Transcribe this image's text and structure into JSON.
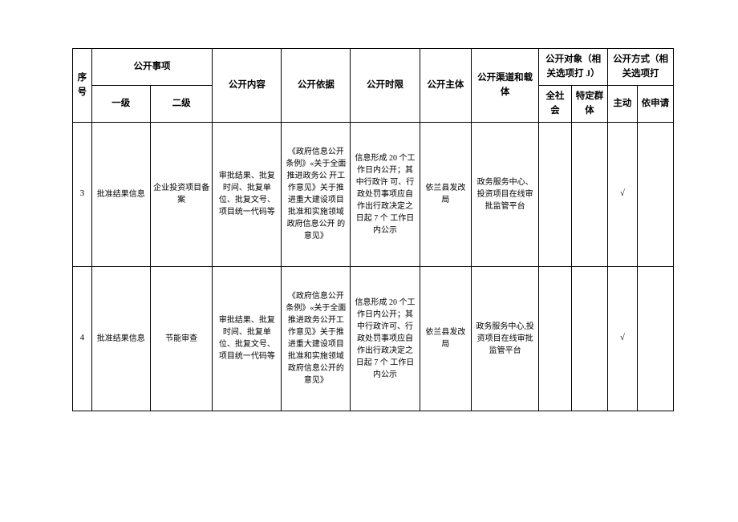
{
  "headers": {
    "seq": "序号",
    "matter": "公开事项",
    "level1": "一级",
    "level2": "二级",
    "content": "公开内容",
    "basis": "公开依据",
    "timeLimit": "公开时限",
    "subject": "公开主体",
    "channel": "公开渠道和载体",
    "target": "公开对象（相关选项打 J）",
    "wholeSociety": "全社会",
    "specificGroup": "特定群体",
    "method": "公开方式（相关选项打",
    "active": "主动",
    "onRequest": "依申请"
  },
  "rows": [
    {
      "seq": "3",
      "level1": "批准结果信息",
      "level2": "企业投资项目备案",
      "content": "审批结果、批复时间、批复单位、批复文号、\n项目统一代码等",
      "basis": "《政府信息公开条例》«关于全面推进政务公\n开工作意见》关于推进重大建设项目批准和实施领域政府信息公开\n的意见》",
      "timeLimit": "信息形成 20 个工作日内公开；其中行政许\n可、行政处罚事项应自作出行政决定之日起 7 个\n工作日内公示",
      "subject": "依兰县发改局",
      "channel": "政务服务中心、投资项目在线审批监管平台",
      "wholeSociety": "",
      "specificGroup": "",
      "active": "√",
      "onRequest": ""
    },
    {
      "seq": "4",
      "level1": "批准结果信息",
      "level2": "节能审查",
      "content": "审批结果、批复时间、批复单\n位、批复文号、项目统一代码等",
      "basis": "《政府信息公开条例》«关于全面推进政务公开工作意见》关于推进重大建设项目批准和实施领域政府信息公开的意见》",
      "timeLimit": "信息形成 20 个工作日内公开；其中行政许可、行政处罚事项应自作出行政决定之日起 7 个\n工作日内公示",
      "subject": "依兰县发改局",
      "channel": "政务服务中心,投资项目在线审批监管平台",
      "wholeSociety": "",
      "specificGroup": "",
      "active": "√",
      "onRequest": ""
    }
  ]
}
